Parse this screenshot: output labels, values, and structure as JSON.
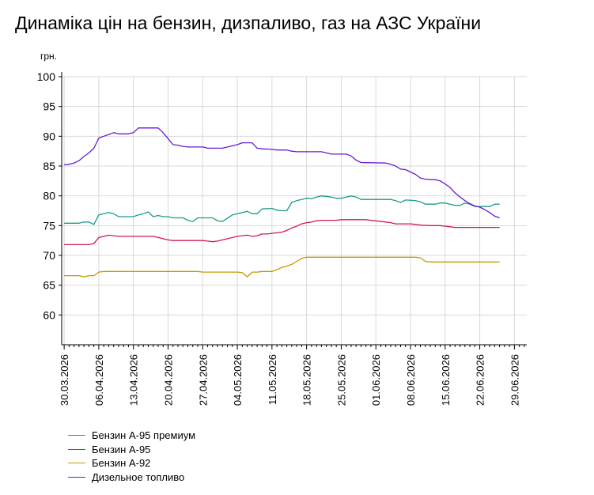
{
  "chart_data": {
    "type": "line",
    "title": "Динаміка цін на бензин, дизпаливо, газ на АЗС України",
    "ylabel": "грн.",
    "xlabel": "",
    "ylim": [
      55,
      100
    ],
    "yticks": [
      60,
      65,
      70,
      75,
      80,
      85,
      90,
      95,
      100
    ],
    "x_start": "30.03.2026",
    "x_end": "01.07.2026",
    "xtick_labels": [
      "30.03.2026",
      "06.04.2026",
      "13.04.2026",
      "20.04.2026",
      "27.04.2026",
      "04.05.2026",
      "11.05.2026",
      "18.05.2026",
      "25.05.2026",
      "01.06.2026",
      "08.06.2026",
      "15.06.2026",
      "22.06.2026",
      "29.06.2026"
    ],
    "grid": true,
    "legend_position": "bottom-left",
    "series": [
      {
        "name": "Бензин А-95 премиум",
        "color": "#1a9c86",
        "points": [
          [
            "30.03.2026",
            75.4
          ],
          [
            "02.04.2026",
            75.4
          ],
          [
            "03.04.2026",
            75.6
          ],
          [
            "04.04.2026",
            75.6
          ],
          [
            "05.04.2026",
            75.2
          ],
          [
            "06.04.2026",
            76.8
          ],
          [
            "07.04.2026",
            77.0
          ],
          [
            "08.04.2026",
            77.2
          ],
          [
            "09.04.2026",
            77.0
          ],
          [
            "10.04.2026",
            76.5
          ],
          [
            "12.04.2026",
            76.5
          ],
          [
            "13.04.2026",
            76.5
          ],
          [
            "14.04.2026",
            76.8
          ],
          [
            "15.04.2026",
            77.0
          ],
          [
            "16.04.2026",
            77.3
          ],
          [
            "17.04.2026",
            76.5
          ],
          [
            "18.04.2026",
            76.7
          ],
          [
            "19.04.2026",
            76.5
          ],
          [
            "20.04.2026",
            76.5
          ],
          [
            "21.04.2026",
            76.3
          ],
          [
            "23.04.2026",
            76.3
          ],
          [
            "24.04.2026",
            75.9
          ],
          [
            "25.04.2026",
            75.7
          ],
          [
            "26.04.2026",
            76.3
          ],
          [
            "29.04.2026",
            76.3
          ],
          [
            "30.04.2026",
            75.8
          ],
          [
            "01.05.2026",
            75.7
          ],
          [
            "03.05.2026",
            76.8
          ],
          [
            "04.05.2026",
            77.0
          ],
          [
            "06.05.2026",
            77.4
          ],
          [
            "07.05.2026",
            77.0
          ],
          [
            "08.05.2026",
            77.0
          ],
          [
            "09.05.2026",
            77.8
          ],
          [
            "11.05.2026",
            77.9
          ],
          [
            "12.05.2026",
            77.6
          ],
          [
            "13.05.2026",
            77.5
          ],
          [
            "14.05.2026",
            77.5
          ],
          [
            "15.05.2026",
            78.9
          ],
          [
            "16.05.2026",
            79.2
          ],
          [
            "17.05.2026",
            79.4
          ],
          [
            "18.05.2026",
            79.6
          ],
          [
            "19.05.2026",
            79.5
          ],
          [
            "20.05.2026",
            79.8
          ],
          [
            "21.05.2026",
            80.0
          ],
          [
            "23.05.2026",
            79.8
          ],
          [
            "24.05.2026",
            79.6
          ],
          [
            "25.05.2026",
            79.6
          ],
          [
            "26.05.2026",
            79.8
          ],
          [
            "27.05.2026",
            80.0
          ],
          [
            "28.05.2026",
            79.8
          ],
          [
            "29.05.2026",
            79.4
          ],
          [
            "01.06.2026",
            79.4
          ],
          [
            "04.06.2026",
            79.4
          ],
          [
            "05.06.2026",
            79.2
          ],
          [
            "06.06.2026",
            78.9
          ],
          [
            "07.06.2026",
            79.3
          ],
          [
            "09.06.2026",
            79.2
          ],
          [
            "10.06.2026",
            79.0
          ],
          [
            "11.06.2026",
            78.6
          ],
          [
            "13.06.2026",
            78.6
          ],
          [
            "14.06.2026",
            78.8
          ],
          [
            "15.06.2026",
            78.8
          ],
          [
            "16.06.2026",
            78.6
          ],
          [
            "17.06.2026",
            78.4
          ],
          [
            "18.06.2026",
            78.4
          ],
          [
            "19.06.2026",
            78.8
          ],
          [
            "20.06.2026",
            78.6
          ],
          [
            "21.06.2026",
            78.2
          ],
          [
            "23.06.2026",
            78.2
          ],
          [
            "24.06.2026",
            78.2
          ],
          [
            "25.06.2026",
            78.6
          ],
          [
            "26.06.2026",
            78.6
          ]
        ]
      },
      {
        "name": "Бензин А-95",
        "color": "#cc1a5a",
        "points": [
          [
            "30.03.2026",
            71.8
          ],
          [
            "04.04.2026",
            71.8
          ],
          [
            "05.04.2026",
            72.0
          ],
          [
            "06.04.2026",
            73.0
          ],
          [
            "07.04.2026",
            73.2
          ],
          [
            "08.04.2026",
            73.4
          ],
          [
            "09.04.2026",
            73.3
          ],
          [
            "10.04.2026",
            73.2
          ],
          [
            "17.04.2026",
            73.2
          ],
          [
            "18.04.2026",
            73.0
          ],
          [
            "19.04.2026",
            72.8
          ],
          [
            "20.04.2026",
            72.6
          ],
          [
            "21.04.2026",
            72.5
          ],
          [
            "27.04.2026",
            72.5
          ],
          [
            "28.04.2026",
            72.4
          ],
          [
            "29.04.2026",
            72.3
          ],
          [
            "30.04.2026",
            72.4
          ],
          [
            "01.05.2026",
            72.6
          ],
          [
            "02.05.2026",
            72.8
          ],
          [
            "03.05.2026",
            73.0
          ],
          [
            "04.05.2026",
            73.2
          ],
          [
            "05.05.2026",
            73.3
          ],
          [
            "06.05.2026",
            73.4
          ],
          [
            "07.05.2026",
            73.2
          ],
          [
            "08.05.2026",
            73.3
          ],
          [
            "09.05.2026",
            73.6
          ],
          [
            "10.05.2026",
            73.6
          ],
          [
            "11.05.2026",
            73.7
          ],
          [
            "12.05.2026",
            73.8
          ],
          [
            "13.05.2026",
            73.9
          ],
          [
            "14.05.2026",
            74.2
          ],
          [
            "15.05.2026",
            74.6
          ],
          [
            "16.05.2026",
            74.9
          ],
          [
            "17.05.2026",
            75.3
          ],
          [
            "18.05.2026",
            75.5
          ],
          [
            "19.05.2026",
            75.6
          ],
          [
            "20.05.2026",
            75.8
          ],
          [
            "21.05.2026",
            75.9
          ],
          [
            "24.05.2026",
            75.9
          ],
          [
            "25.05.2026",
            76.0
          ],
          [
            "30.05.2026",
            76.0
          ],
          [
            "31.05.2026",
            75.9
          ],
          [
            "01.06.2026",
            75.8
          ],
          [
            "03.06.2026",
            75.6
          ],
          [
            "04.06.2026",
            75.5
          ],
          [
            "05.06.2026",
            75.3
          ],
          [
            "08.06.2026",
            75.3
          ],
          [
            "09.06.2026",
            75.2
          ],
          [
            "10.06.2026",
            75.1
          ],
          [
            "12.06.2026",
            75.0
          ],
          [
            "14.06.2026",
            75.0
          ],
          [
            "15.06.2026",
            74.9
          ],
          [
            "16.06.2026",
            74.8
          ],
          [
            "17.06.2026",
            74.7
          ],
          [
            "26.06.2026",
            74.7
          ]
        ]
      },
      {
        "name": "Бензин А-92",
        "color": "#c49a00",
        "points": [
          [
            "30.03.2026",
            66.6
          ],
          [
            "02.04.2026",
            66.6
          ],
          [
            "03.04.2026",
            66.4
          ],
          [
            "04.04.2026",
            66.6
          ],
          [
            "05.04.2026",
            66.6
          ],
          [
            "06.04.2026",
            67.2
          ],
          [
            "07.04.2026",
            67.3
          ],
          [
            "26.04.2026",
            67.3
          ],
          [
            "27.04.2026",
            67.2
          ],
          [
            "04.05.2026",
            67.2
          ],
          [
            "05.05.2026",
            67.1
          ],
          [
            "06.05.2026",
            66.4
          ],
          [
            "07.05.2026",
            67.2
          ],
          [
            "08.05.2026",
            67.2
          ],
          [
            "09.05.2026",
            67.3
          ],
          [
            "11.05.2026",
            67.3
          ],
          [
            "12.05.2026",
            67.6
          ],
          [
            "13.05.2026",
            68.0
          ],
          [
            "14.05.2026",
            68.2
          ],
          [
            "15.05.2026",
            68.5
          ],
          [
            "16.05.2026",
            69.0
          ],
          [
            "17.05.2026",
            69.5
          ],
          [
            "18.05.2026",
            69.7
          ],
          [
            "09.06.2026",
            69.7
          ],
          [
            "10.06.2026",
            69.6
          ],
          [
            "11.06.2026",
            69.0
          ],
          [
            "12.06.2026",
            68.9
          ],
          [
            "26.06.2026",
            68.9
          ]
        ]
      },
      {
        "name": "Дизельное топливо",
        "color": "#6a1ad1",
        "points": [
          [
            "30.03.2026",
            85.2
          ],
          [
            "31.03.2026",
            85.3
          ],
          [
            "01.04.2026",
            85.5
          ],
          [
            "02.04.2026",
            85.9
          ],
          [
            "03.04.2026",
            86.6
          ],
          [
            "04.04.2026",
            87.2
          ],
          [
            "05.04.2026",
            88.0
          ],
          [
            "06.04.2026",
            89.7
          ],
          [
            "07.04.2026",
            90.0
          ],
          [
            "08.04.2026",
            90.3
          ],
          [
            "09.04.2026",
            90.6
          ],
          [
            "10.04.2026",
            90.4
          ],
          [
            "12.04.2026",
            90.4
          ],
          [
            "13.04.2026",
            90.6
          ],
          [
            "14.04.2026",
            91.4
          ],
          [
            "18.04.2026",
            91.4
          ],
          [
            "19.04.2026",
            90.6
          ],
          [
            "20.04.2026",
            89.6
          ],
          [
            "21.04.2026",
            88.6
          ],
          [
            "22.04.2026",
            88.5
          ],
          [
            "23.04.2026",
            88.3
          ],
          [
            "24.04.2026",
            88.2
          ],
          [
            "25.04.2026",
            88.2
          ],
          [
            "27.04.2026",
            88.2
          ],
          [
            "28.04.2026",
            88.0
          ],
          [
            "01.05.2026",
            88.0
          ],
          [
            "02.05.2026",
            88.2
          ],
          [
            "03.05.2026",
            88.4
          ],
          [
            "04.05.2026",
            88.6
          ],
          [
            "05.05.2026",
            88.9
          ],
          [
            "07.05.2026",
            88.9
          ],
          [
            "08.05.2026",
            88.0
          ],
          [
            "09.05.2026",
            87.9
          ],
          [
            "11.05.2026",
            87.8
          ],
          [
            "12.05.2026",
            87.7
          ],
          [
            "14.05.2026",
            87.7
          ],
          [
            "15.05.2026",
            87.5
          ],
          [
            "16.05.2026",
            87.4
          ],
          [
            "21.05.2026",
            87.4
          ],
          [
            "22.05.2026",
            87.2
          ],
          [
            "23.05.2026",
            87.0
          ],
          [
            "26.05.2026",
            87.0
          ],
          [
            "27.05.2026",
            86.7
          ],
          [
            "28.05.2026",
            86.0
          ],
          [
            "29.05.2026",
            85.6
          ],
          [
            "03.06.2026",
            85.5
          ],
          [
            "04.06.2026",
            85.3
          ],
          [
            "05.06.2026",
            85.0
          ],
          [
            "06.06.2026",
            84.5
          ],
          [
            "07.06.2026",
            84.4
          ],
          [
            "08.06.2026",
            84.0
          ],
          [
            "09.06.2026",
            83.6
          ],
          [
            "10.06.2026",
            83.0
          ],
          [
            "11.06.2026",
            82.8
          ],
          [
            "13.06.2026",
            82.7
          ],
          [
            "14.06.2026",
            82.5
          ],
          [
            "15.06.2026",
            82.0
          ],
          [
            "16.06.2026",
            81.4
          ],
          [
            "17.06.2026",
            80.5
          ],
          [
            "18.06.2026",
            79.8
          ],
          [
            "19.06.2026",
            79.2
          ],
          [
            "20.06.2026",
            78.7
          ],
          [
            "21.06.2026",
            78.3
          ],
          [
            "22.06.2026",
            78.1
          ],
          [
            "23.06.2026",
            77.7
          ],
          [
            "24.06.2026",
            77.2
          ],
          [
            "25.06.2026",
            76.6
          ],
          [
            "26.06.2026",
            76.3
          ]
        ]
      }
    ]
  }
}
